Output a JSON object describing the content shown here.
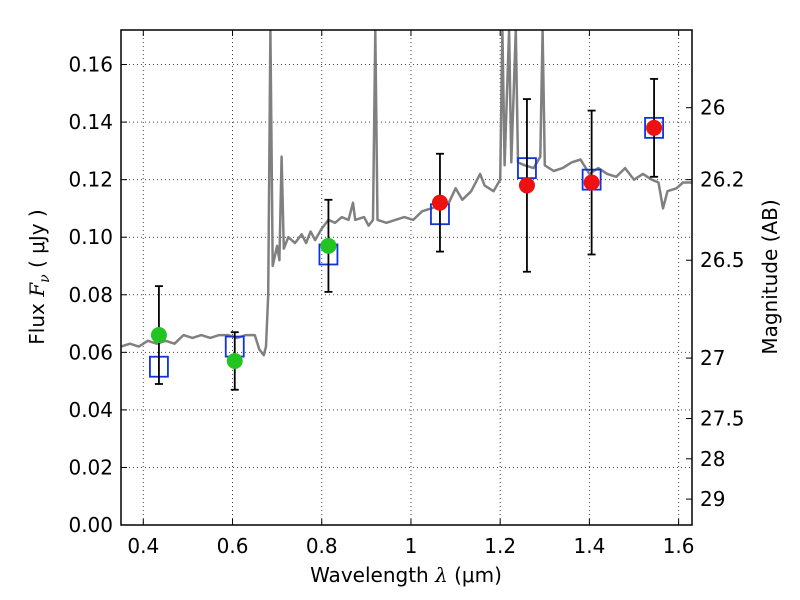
{
  "chart_data": {
    "type": "scatter",
    "xlabel": {
      "text": "Wavelength",
      "sym": "λ",
      "unit": "(μm)"
    },
    "ylabel": {
      "text": "Flux",
      "sym": "F",
      "sub": "ν",
      "unit": "( μJy )"
    },
    "y2label": "Magnitude (AB)",
    "xlim": [
      0.35,
      1.63
    ],
    "ylim": [
      0.0,
      0.172
    ],
    "grid": true,
    "x_ticks": [
      {
        "v": 0.4,
        "label": "0.4"
      },
      {
        "v": 0.6,
        "label": "0.6"
      },
      {
        "v": 0.8,
        "label": "0.8"
      },
      {
        "v": 1.0,
        "label": "1"
      },
      {
        "v": 1.2,
        "label": "1.2"
      },
      {
        "v": 1.4,
        "label": "1.4"
      },
      {
        "v": 1.6,
        "label": "1.6"
      }
    ],
    "y_ticks": [
      {
        "v": 0.0,
        "label": "0.00"
      },
      {
        "v": 0.02,
        "label": "0.02"
      },
      {
        "v": 0.04,
        "label": "0.04"
      },
      {
        "v": 0.06,
        "label": "0.06"
      },
      {
        "v": 0.08,
        "label": "0.08"
      },
      {
        "v": 0.1,
        "label": "0.10"
      },
      {
        "v": 0.12,
        "label": "0.12"
      },
      {
        "v": 0.14,
        "label": "0.14"
      },
      {
        "v": 0.16,
        "label": "0.16"
      }
    ],
    "y2_ticks": [
      {
        "flux": 0.145,
        "label": "26"
      },
      {
        "flux": 0.12,
        "label": "26.2"
      },
      {
        "flux": 0.092,
        "label": "26.5"
      },
      {
        "flux": 0.058,
        "label": "27"
      },
      {
        "flux": 0.037,
        "label": "27.5"
      },
      {
        "flux": 0.023,
        "label": "28"
      },
      {
        "flux": 0.009,
        "label": "29"
      }
    ],
    "colors": {
      "template": "#808080",
      "green": "#22c422",
      "red": "#ee1111",
      "model_box": "#1133dd",
      "errorbar": "#000000",
      "grid": "#444444"
    },
    "template_spectrum": [
      [
        0.35,
        0.062
      ],
      [
        0.37,
        0.063
      ],
      [
        0.39,
        0.062
      ],
      [
        0.41,
        0.064
      ],
      [
        0.43,
        0.063
      ],
      [
        0.45,
        0.064
      ],
      [
        0.47,
        0.063
      ],
      [
        0.49,
        0.066
      ],
      [
        0.51,
        0.065
      ],
      [
        0.53,
        0.066
      ],
      [
        0.55,
        0.065
      ],
      [
        0.57,
        0.066
      ],
      [
        0.59,
        0.066
      ],
      [
        0.61,
        0.065
      ],
      [
        0.63,
        0.066
      ],
      [
        0.65,
        0.066
      ],
      [
        0.66,
        0.061
      ],
      [
        0.67,
        0.059
      ],
      [
        0.675,
        0.062
      ],
      [
        0.68,
        0.08
      ],
      [
        0.685,
        0.172
      ],
      [
        0.69,
        0.09
      ],
      [
        0.7,
        0.097
      ],
      [
        0.705,
        0.092
      ],
      [
        0.71,
        0.128
      ],
      [
        0.715,
        0.096
      ],
      [
        0.725,
        0.1
      ],
      [
        0.74,
        0.098
      ],
      [
        0.755,
        0.101
      ],
      [
        0.765,
        0.098
      ],
      [
        0.775,
        0.102
      ],
      [
        0.785,
        0.099
      ],
      [
        0.8,
        0.103
      ],
      [
        0.815,
        0.106
      ],
      [
        0.83,
        0.105
      ],
      [
        0.845,
        0.107
      ],
      [
        0.86,
        0.106
      ],
      [
        0.87,
        0.112
      ],
      [
        0.875,
        0.106
      ],
      [
        0.895,
        0.107
      ],
      [
        0.905,
        0.104
      ],
      [
        0.915,
        0.106
      ],
      [
        0.92,
        0.172
      ],
      [
        0.925,
        0.106
      ],
      [
        0.945,
        0.105
      ],
      [
        0.965,
        0.106
      ],
      [
        0.985,
        0.107
      ],
      [
        1.005,
        0.106
      ],
      [
        1.025,
        0.109
      ],
      [
        1.045,
        0.11
      ],
      [
        1.065,
        0.111
      ],
      [
        1.085,
        0.112
      ],
      [
        1.1,
        0.117
      ],
      [
        1.115,
        0.113
      ],
      [
        1.135,
        0.116
      ],
      [
        1.155,
        0.122
      ],
      [
        1.165,
        0.118
      ],
      [
        1.185,
        0.116
      ],
      [
        1.2,
        0.12
      ],
      [
        1.205,
        0.172
      ],
      [
        1.21,
        0.125
      ],
      [
        1.22,
        0.172
      ],
      [
        1.225,
        0.126
      ],
      [
        1.235,
        0.172
      ],
      [
        1.24,
        0.126
      ],
      [
        1.255,
        0.125
      ],
      [
        1.275,
        0.124
      ],
      [
        1.29,
        0.128
      ],
      [
        1.295,
        0.172
      ],
      [
        1.3,
        0.125
      ],
      [
        1.32,
        0.123
      ],
      [
        1.34,
        0.124
      ],
      [
        1.36,
        0.126
      ],
      [
        1.38,
        0.127
      ],
      [
        1.4,
        0.122
      ],
      [
        1.42,
        0.124
      ],
      [
        1.44,
        0.122
      ],
      [
        1.46,
        0.121
      ],
      [
        1.48,
        0.124
      ],
      [
        1.5,
        0.12
      ],
      [
        1.52,
        0.122
      ],
      [
        1.54,
        0.12
      ],
      [
        1.555,
        0.119
      ],
      [
        1.565,
        0.11
      ],
      [
        1.575,
        0.116
      ],
      [
        1.595,
        0.117
      ],
      [
        1.61,
        0.119
      ],
      [
        1.63,
        0.119
      ]
    ],
    "series": [
      {
        "color": "green",
        "points": [
          {
            "x": 0.435,
            "y": 0.066,
            "err": 0.017
          },
          {
            "x": 0.605,
            "y": 0.057,
            "err": 0.01
          },
          {
            "x": 0.815,
            "y": 0.097,
            "err": 0.016
          }
        ]
      },
      {
        "color": "red",
        "points": [
          {
            "x": 1.065,
            "y": 0.112,
            "err": 0.017
          },
          {
            "x": 1.26,
            "y": 0.118,
            "err": 0.03
          },
          {
            "x": 1.405,
            "y": 0.119,
            "err": 0.025
          },
          {
            "x": 1.545,
            "y": 0.138,
            "err": 0.017
          }
        ]
      }
    ],
    "model_points": [
      {
        "x": 0.435,
        "y": 0.055
      },
      {
        "x": 0.605,
        "y": 0.062
      },
      {
        "x": 0.815,
        "y": 0.094
      },
      {
        "x": 1.065,
        "y": 0.108
      },
      {
        "x": 1.26,
        "y": 0.124
      },
      {
        "x": 1.405,
        "y": 0.12
      },
      {
        "x": 1.545,
        "y": 0.138
      }
    ]
  }
}
